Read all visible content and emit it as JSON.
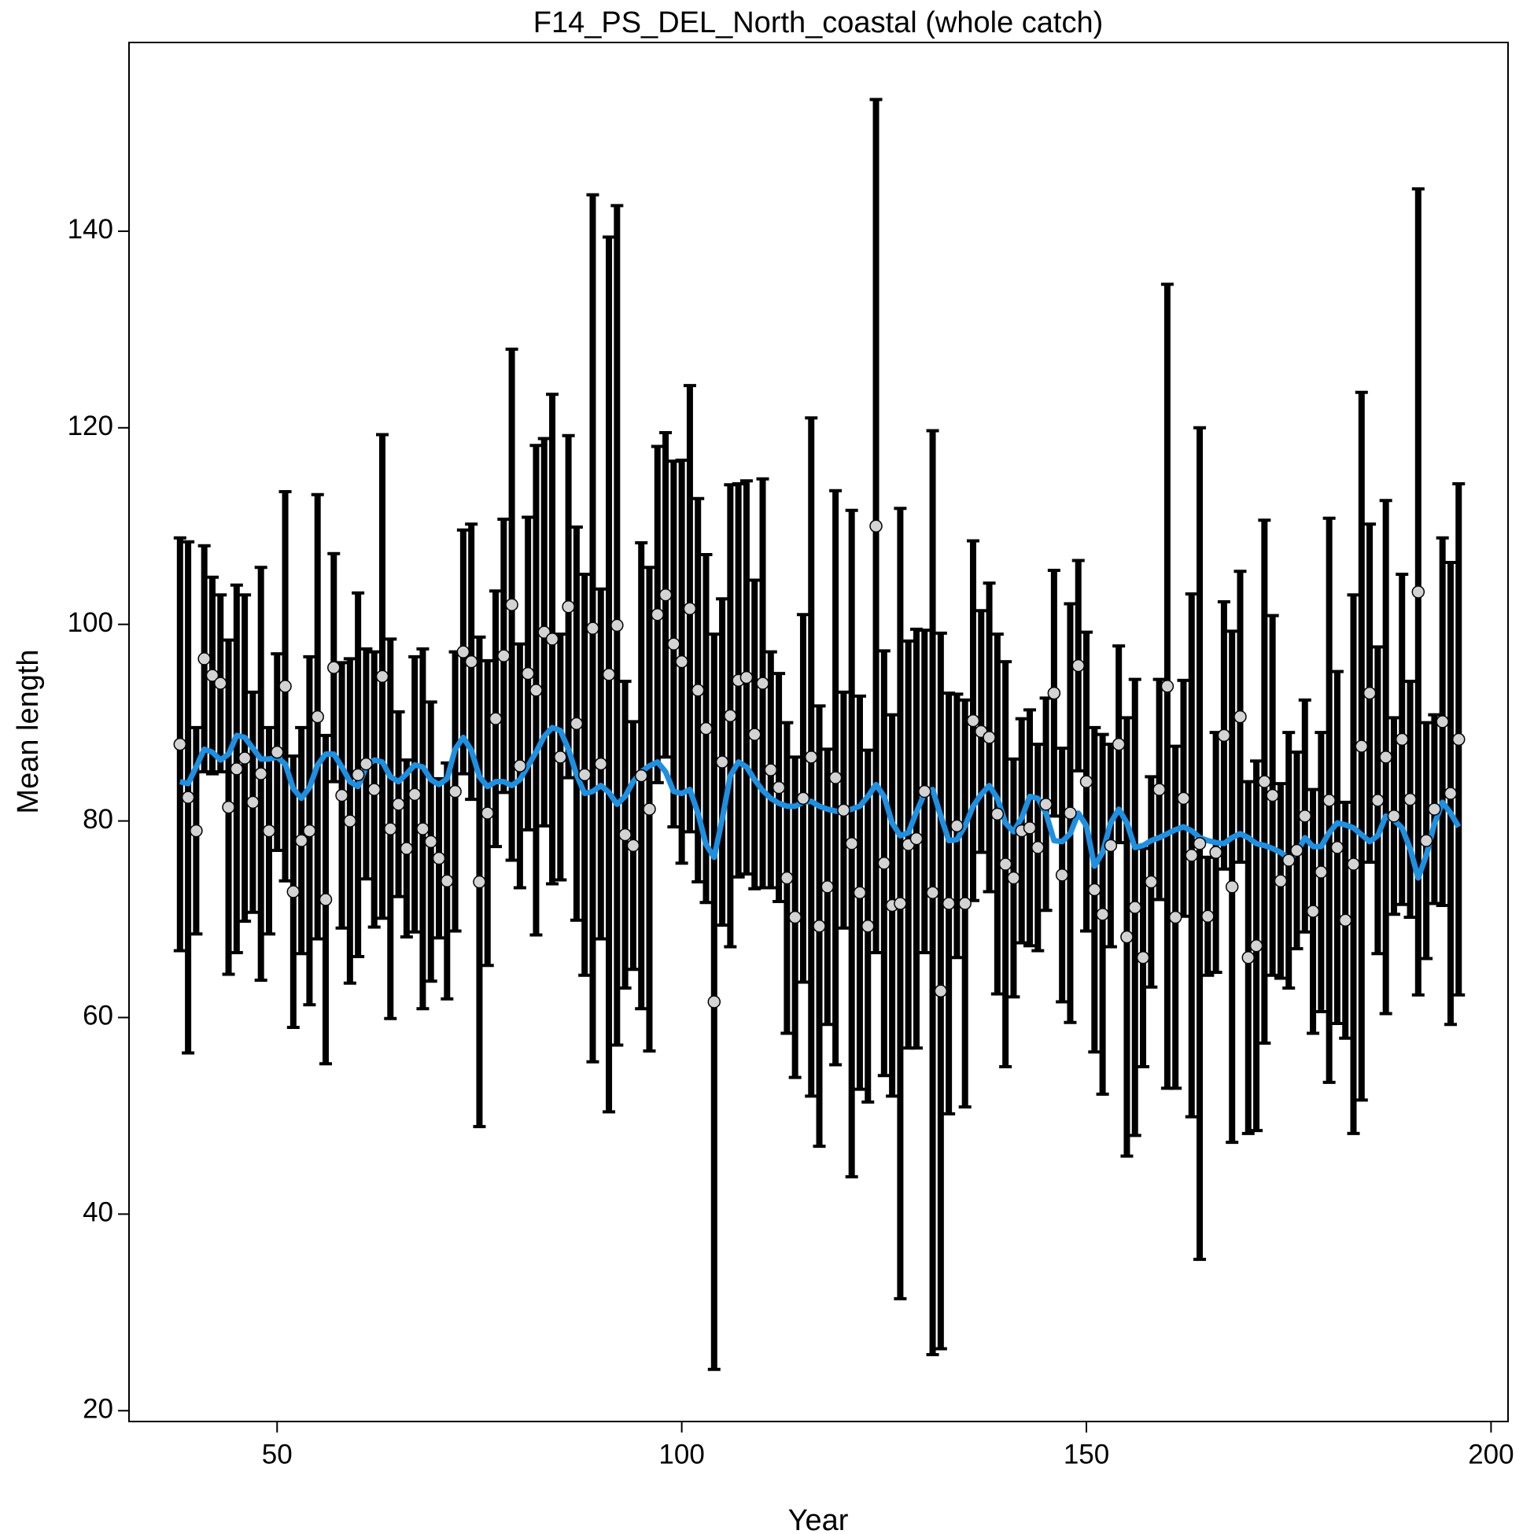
{
  "chart_data": {
    "type": "errorbar",
    "title": "F14_PS_DEL_North_coastal (whole catch)",
    "xlabel": "Year",
    "ylabel": "Mean length",
    "xlim": [
      31.7,
      202.1
    ],
    "ylim": [
      18.9,
      159.2
    ],
    "xticks": [
      50,
      100,
      150,
      200
    ],
    "yticks": [
      20,
      40,
      60,
      80,
      100,
      120,
      140
    ],
    "point_color": "#d3d3d3",
    "bar_color": "#000000",
    "x": [
      38,
      39,
      40,
      41,
      42,
      43,
      44,
      45,
      46,
      47,
      48,
      49,
      50,
      51,
      52,
      53,
      54,
      55,
      56,
      57,
      58,
      59,
      60,
      61,
      62,
      63,
      64,
      65,
      66,
      67,
      68,
      69,
      70,
      71,
      72,
      73,
      74,
      75,
      76,
      77,
      78,
      79,
      80,
      81,
      82,
      83,
      84,
      85,
      86,
      87,
      88,
      89,
      90,
      91,
      92,
      93,
      94,
      95,
      96,
      97,
      98,
      99,
      100,
      101,
      102,
      103,
      104,
      105,
      106,
      107,
      108,
      109,
      110,
      111,
      112,
      113,
      114,
      115,
      116,
      117,
      118,
      119,
      120,
      121,
      122,
      123,
      124,
      125,
      126,
      127,
      128,
      129,
      130,
      131,
      132,
      133,
      134,
      135,
      136,
      137,
      138,
      139,
      140,
      141,
      142,
      143,
      144,
      145,
      146,
      147,
      148,
      149,
      150,
      151,
      152,
      153,
      154,
      155,
      156,
      157,
      158,
      159,
      160,
      161,
      162,
      163,
      164,
      165,
      166,
      167,
      168,
      169,
      170,
      171,
      172,
      173,
      174,
      175,
      176,
      177,
      178,
      179,
      180,
      181,
      182,
      183,
      184,
      185,
      186,
      187,
      188,
      189,
      190,
      191,
      192,
      193,
      194,
      195,
      196
    ],
    "values": [
      87.8,
      82.4,
      79,
      96.5,
      94.8,
      94,
      81.4,
      85.3,
      86.4,
      81.9,
      84.8,
      79,
      87,
      93.7,
      72.8,
      78,
      79,
      90.6,
      72,
      95.6,
      82.6,
      80,
      84.7,
      85.8,
      83.2,
      94.7,
      79.2,
      81.7,
      77.2,
      82.7,
      79.2,
      77.9,
      76.2,
      73.9,
      83,
      97.2,
      96.2,
      73.8,
      80.8,
      90.4,
      96.8,
      102,
      85.6,
      95,
      93.3,
      99.2,
      98.5,
      86.5,
      101.8,
      89.9,
      84.7,
      99.6,
      85.8,
      94.9,
      99.9,
      78.6,
      77.5,
      84.6,
      81.2,
      101,
      103,
      98,
      96.2,
      101.6,
      93.3,
      89.4,
      61.6,
      86,
      90.7,
      94.3,
      94.6,
      88.8,
      94,
      85.2,
      83.4,
      74.2,
      70.2,
      82.3,
      86.5,
      69.3,
      73.3,
      84.4,
      81.1,
      77.7,
      72.7,
      69.3,
      110,
      75.7,
      71.4,
      71.6,
      77.6,
      78.2,
      83,
      72.7,
      62.7,
      71.6,
      79.5,
      71.6,
      90.2,
      89.1,
      88.5,
      80.7,
      75.6,
      74.2,
      79,
      79.3,
      77.3,
      81.7,
      93,
      74.5,
      80.8,
      95.8,
      84,
      73,
      70.5,
      77.5,
      87.8,
      68.2,
      71.2,
      66.1,
      73.8,
      83.2,
      93.7,
      70.2,
      82.3,
      76.5,
      77.7,
      70.3,
      76.8,
      88.7,
      73.3,
      90.6,
      66.1,
      67.3,
      84,
      82.6,
      73.9,
      76,
      77,
      80.5,
      70.8,
      74.8,
      82.1,
      77.3,
      69.9,
      75.6,
      87.6,
      93,
      82.1,
      86.5,
      80.5,
      88.3,
      82.2,
      103.3,
      78,
      81.2,
      90.1,
      82.8,
      88.3
    ],
    "errors": [
      21,
      26,
      10.5,
      11.5,
      10,
      9,
      17,
      18.7,
      16.6,
      11.2,
      21,
      10.5,
      10,
      19.8,
      13.8,
      11.5,
      17.7,
      22.6,
      16.7,
      11.6,
      13.5,
      16.5,
      18.5,
      11.7,
      14,
      24.6,
      19.3,
      9.4,
      9,
      14,
      18.3,
      14.2,
      8.1,
      12,
      14.2,
      12.4,
      14,
      24.9,
      15.5,
      13,
      13.9,
      26,
      12.4,
      15.9,
      24.9,
      19.7,
      24.9,
      12.5,
      17.4,
      20,
      20.4,
      44.1,
      17.8,
      44.5,
      42.7,
      15.6,
      12.6,
      23.7,
      24.6,
      17.1,
      16.5,
      18.6,
      20.5,
      22.7,
      19.5,
      17.7,
      37.4,
      16.6,
      23.5,
      20,
      20,
      15.7,
      20.8,
      12,
      11.6,
      15.8,
      16.3,
      18.7,
      34.5,
      22.4,
      14,
      29.2,
      12,
      33.9,
      20,
      17.9,
      43.4,
      21.6,
      19.4,
      40.2,
      20.7,
      21.3,
      16.4,
      47,
      36.4,
      21.4,
      13.4,
      20.7,
      18.3,
      12.3,
      15.7,
      18.3,
      20.6,
      12.1,
      11.4,
      12,
      10.5,
      10.8,
      12.5,
      12.9,
      21.3,
      10.7,
      15.2,
      16.5,
      18.3,
      10.3,
      10,
      22.3,
      23.2,
      11.1,
      10.7,
      11.2,
      40.9,
      17.4,
      12,
      26.6,
      42.3,
      6,
      12.2,
      13.6,
      26,
      14.8,
      17.9,
      18.8,
      26.6,
      18.3,
      9.9,
      13,
      10,
      11.8,
      12.4,
      14.2,
      28.7,
      17.9,
      12,
      27.4,
      36,
      17.2,
      15.6,
      26.1,
      10,
      16.8,
      12,
      41,
      12,
      9.6,
      18.7,
      23.5,
      26
    ],
    "smooth": {
      "color": "#1f8fe0",
      "values": [
        84,
        83.8,
        85.5,
        87.3,
        87,
        86.2,
        86.8,
        88.7,
        88.5,
        87.4,
        86.3,
        86.3,
        86.5,
        85.8,
        83.3,
        82.3,
        83.4,
        85.7,
        86.8,
        86.8,
        85.5,
        84,
        83.5,
        85.5,
        86.2,
        86,
        84.5,
        84,
        84.8,
        85.7,
        85.5,
        84.2,
        83.7,
        84.3,
        87.3,
        88.5,
        87.2,
        84.5,
        83.5,
        84,
        84,
        83.6,
        84.2,
        85.6,
        87,
        88.6,
        89.5,
        89.2,
        87.3,
        84.7,
        82.8,
        83,
        83.6,
        82.9,
        81.7,
        82.5,
        84,
        85,
        85.6,
        86,
        85,
        83,
        82.8,
        83.2,
        80.8,
        77.6,
        76.3,
        80.2,
        84.6,
        86,
        85.5,
        84.2,
        83.1,
        82.3,
        81.8,
        81.5,
        81.5,
        81.9,
        82,
        81.5,
        81.2,
        81,
        81,
        81.2,
        81.5,
        82.5,
        83.7,
        82.5,
        79.8,
        78.5,
        78.8,
        80.9,
        82.8,
        83.2,
        80.5,
        78,
        78.1,
        79.5,
        81.5,
        82.7,
        83.6,
        82.3,
        79.8,
        78.9,
        80.3,
        82.5,
        82.3,
        80.8,
        78,
        77.9,
        78.7,
        80.8,
        79.5,
        75.4,
        76.8,
        79.8,
        81.2,
        79.8,
        77.3,
        77.5,
        78,
        78.3,
        78.7,
        79.1,
        79.4,
        79,
        78.3,
        78,
        77.8,
        77.7,
        78.3,
        78.7,
        78.3,
        77.7,
        77.5,
        77.2,
        76.8,
        76.2,
        76.7,
        78.3,
        77.4,
        77.4,
        78.8,
        79.8,
        79.6,
        79.3,
        78.6,
        77.9,
        78.5,
        80.5,
        80.1,
        79.3,
        77.2,
        74.2,
        76.5,
        79.7,
        81.9,
        80.8,
        79.4
      ]
    }
  }
}
